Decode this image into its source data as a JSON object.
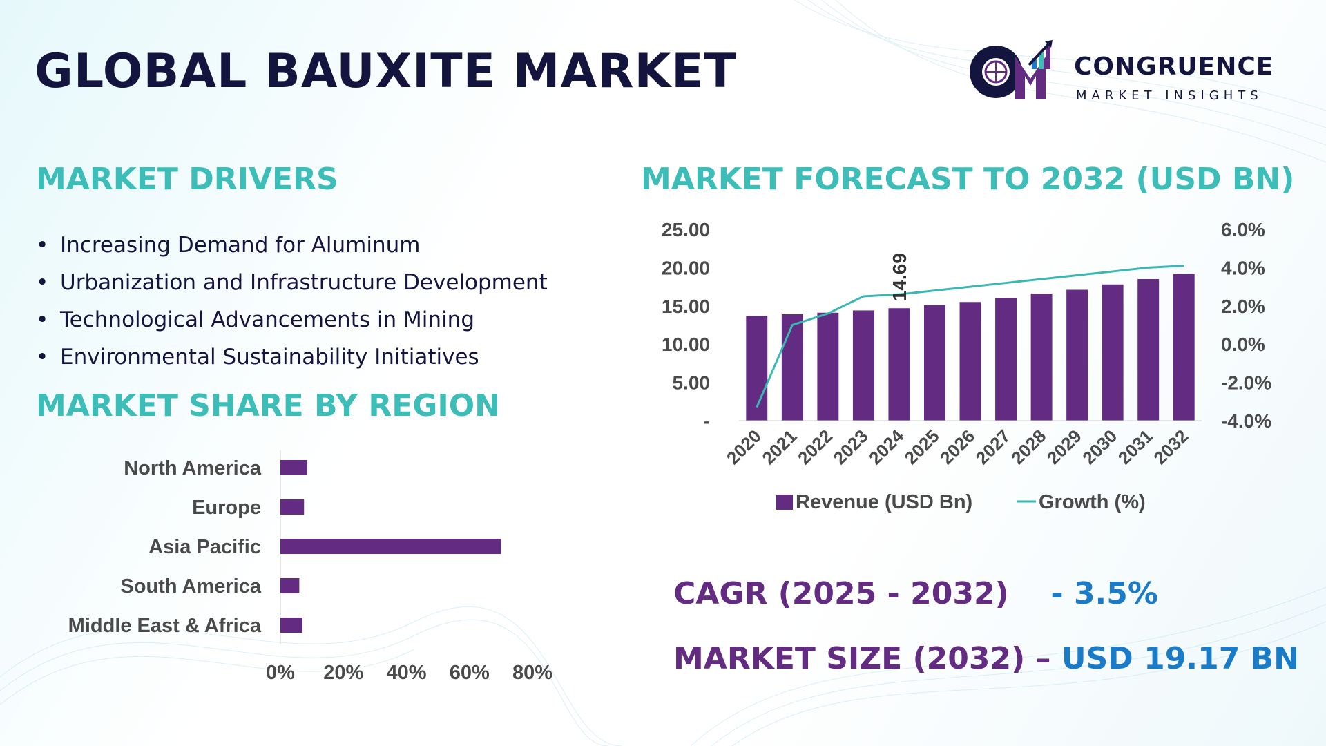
{
  "title": "GLOBAL BAUXITE MARKET",
  "logo": {
    "name": "CONGRUENCE",
    "tagline": "MARKET INSIGHTS",
    "mark_letters": "CM"
  },
  "colors": {
    "navy": "#13153f",
    "teal": "#3dbdb8",
    "purple": "#632c82",
    "blue": "#1a7cc9",
    "line": "#3ab7b2"
  },
  "drivers": {
    "heading": "MARKET DRIVERS",
    "items": [
      "Increasing Demand for Aluminum",
      "Urbanization and Infrastructure Development",
      "Technological Advancements in Mining",
      "Environmental Sustainability Initiatives"
    ]
  },
  "forecast": {
    "heading": "MARKET FORECAST TO 2032 (USD BN)"
  },
  "region": {
    "heading": "MARKET SHARE BY REGION"
  },
  "stats": {
    "cagr_label": "CAGR (2025 - 2032)",
    "cagr_value": "- 3.5%",
    "size_label": "MARKET SIZE (2032) –",
    "size_value": "USD 19.17 BN"
  },
  "chart_data": [
    {
      "type": "bar",
      "categories": [
        "2020",
        "2021",
        "2022",
        "2023",
        "2024",
        "2025",
        "2026",
        "2027",
        "2028",
        "2029",
        "2030",
        "2031",
        "2032"
      ],
      "series": [
        {
          "name": "Revenue (USD Bn)",
          "type": "bar",
          "axis": "left",
          "values": [
            13.7,
            13.9,
            14.1,
            14.4,
            14.69,
            15.1,
            15.5,
            16.0,
            16.6,
            17.1,
            17.8,
            18.5,
            19.17
          ]
        },
        {
          "name": "Growth (%)",
          "type": "line",
          "axis": "right",
          "values": [
            -3.3,
            1.0,
            1.6,
            2.5,
            2.6,
            2.8,
            3.0,
            3.2,
            3.4,
            3.6,
            3.8,
            4.0,
            4.1
          ]
        }
      ],
      "data_label": {
        "category": "2024",
        "text": "14.69"
      },
      "y_left": {
        "ticks": [
          "25.00",
          "20.00",
          "15.00",
          "10.00",
          "5.00",
          "-"
        ],
        "ylim": [
          0,
          25
        ]
      },
      "y_right": {
        "ticks": [
          "6.0%",
          "4.0%",
          "2.0%",
          "0.0%",
          "-2.0%",
          "-4.0%"
        ],
        "ylim": [
          -4,
          6
        ]
      },
      "legend_position": "bottom",
      "grid": false
    },
    {
      "type": "bar",
      "orientation": "horizontal",
      "categories": [
        "North America",
        "Europe",
        "Asia Pacific",
        "South America",
        "Middle East & Africa"
      ],
      "values": [
        8.5,
        7.5,
        70,
        6,
        7
      ],
      "x_ticks": [
        "0%",
        "20%",
        "40%",
        "60%",
        "80%"
      ],
      "xlim": [
        0,
        80
      ],
      "grid": false
    }
  ]
}
